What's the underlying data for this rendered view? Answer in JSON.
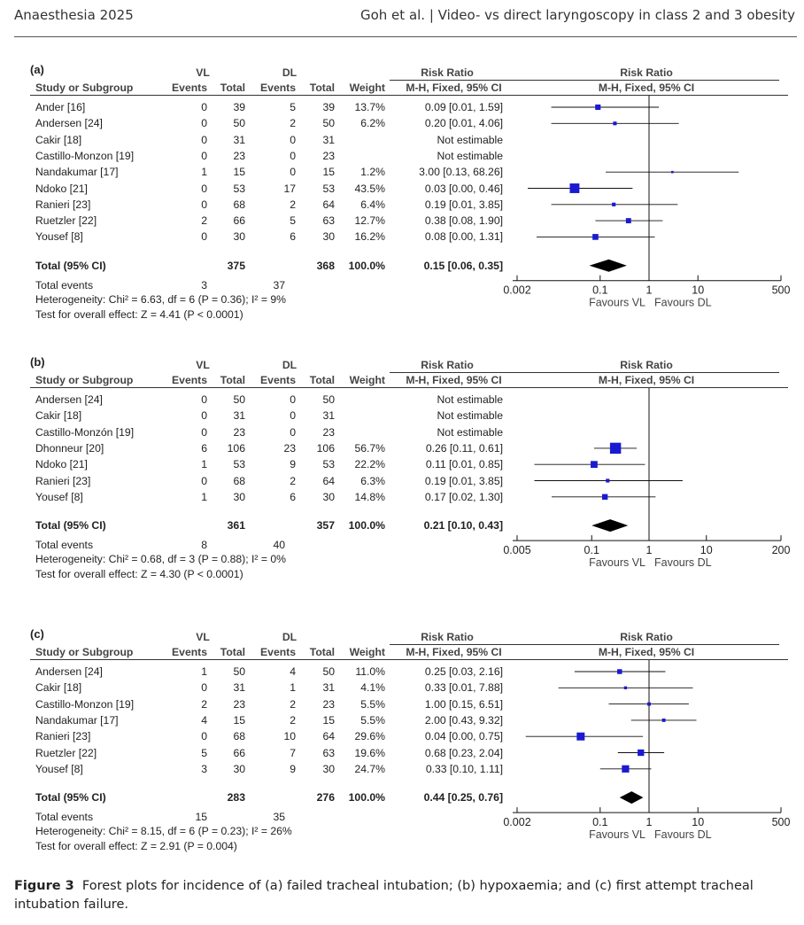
{
  "header": {
    "journal": "Anaesthesia 2025",
    "running_title": "Goh et al.  |  Video- vs direct laryngoscopy in class 2 and 3 obesity"
  },
  "caption": {
    "label": "Figure 3",
    "text": "Forest plots for incidence of (a) failed tracheal intubation; (b) hypoxaemia; and (c) first attempt tracheal intubation failure."
  },
  "column_headers": {
    "group1": "VL",
    "group2": "DL",
    "study": "Study or Subgroup",
    "events": "Events",
    "total": "Total",
    "weight": "Weight",
    "rr_title": "Risk Ratio",
    "rr_method": "M-H, Fixed, 95% CI",
    "plot_title": "Risk Ratio",
    "plot_method": "M-H, Fixed, 95% CI",
    "favours_left": "Favours VL",
    "favours_right": "Favours DL",
    "total_events_label": "Total events"
  },
  "chart_data": [
    {
      "label": "(a)",
      "type": "forest",
      "scale": "log",
      "xlim": [
        0.002,
        500
      ],
      "ticks": [
        "0.002",
        "0.1",
        "1",
        "10",
        "500"
      ],
      "rows": [
        {
          "study": "Ander [16]",
          "vl_events": "0",
          "vl_total": "39",
          "dl_events": "5",
          "dl_total": "39",
          "weight": "13.7%",
          "rr_text": "0.09 [0.01, 1.59]",
          "rr": 0.09,
          "lo": 0.01,
          "hi": 1.59,
          "w": 13.7
        },
        {
          "study": "Andersen [24]",
          "vl_events": "0",
          "vl_total": "50",
          "dl_events": "2",
          "dl_total": "50",
          "weight": "6.2%",
          "rr_text": "0.20 [0.01, 4.06]",
          "rr": 0.2,
          "lo": 0.01,
          "hi": 4.06,
          "w": 6.2
        },
        {
          "study": "Cakir [18]",
          "vl_events": "0",
          "vl_total": "31",
          "dl_events": "0",
          "dl_total": "31",
          "weight": "",
          "rr_text": "Not estimable",
          "rr": null,
          "lo": null,
          "hi": null,
          "w": 0
        },
        {
          "study": "Castillo-Monzon [19]",
          "vl_events": "0",
          "vl_total": "23",
          "dl_events": "0",
          "dl_total": "23",
          "weight": "",
          "rr_text": "Not estimable",
          "rr": null,
          "lo": null,
          "hi": null,
          "w": 0
        },
        {
          "study": "Nandakumar [17]",
          "vl_events": "1",
          "vl_total": "15",
          "dl_events": "0",
          "dl_total": "15",
          "weight": "1.2%",
          "rr_text": "3.00 [0.13, 68.26]",
          "rr": 3.0,
          "lo": 0.13,
          "hi": 68.26,
          "w": 1.2
        },
        {
          "study": "Ndoko [21]",
          "vl_events": "0",
          "vl_total": "53",
          "dl_events": "17",
          "dl_total": "53",
          "weight": "43.5%",
          "rr_text": "0.03 [0.00, 0.46]",
          "rr": 0.03,
          "lo": 0.0033,
          "hi": 0.46,
          "w": 43.5
        },
        {
          "study": "Ranieri [23]",
          "vl_events": "0",
          "vl_total": "68",
          "dl_events": "2",
          "dl_total": "64",
          "weight": "6.4%",
          "rr_text": "0.19 [0.01, 3.85]",
          "rr": 0.19,
          "lo": 0.01,
          "hi": 3.85,
          "w": 6.4
        },
        {
          "study": "Ruetzler [22]",
          "vl_events": "2",
          "vl_total": "66",
          "dl_events": "5",
          "dl_total": "63",
          "weight": "12.7%",
          "rr_text": "0.38 [0.08, 1.90]",
          "rr": 0.38,
          "lo": 0.08,
          "hi": 1.9,
          "w": 12.7
        },
        {
          "study": "Yousef [8]",
          "vl_events": "0",
          "vl_total": "30",
          "dl_events": "6",
          "dl_total": "30",
          "weight": "16.2%",
          "rr_text": "0.08 [0.00, 1.31]",
          "rr": 0.08,
          "lo": 0.005,
          "hi": 1.31,
          "w": 16.2
        }
      ],
      "total": {
        "label": "Total (95% CI)",
        "vl_total": "375",
        "dl_total": "368",
        "weight": "100.0%",
        "rr_text": "0.15 [0.06, 0.35]",
        "rr": 0.15,
        "lo": 0.06,
        "hi": 0.35
      },
      "total_events": {
        "vl": "3",
        "dl": "37"
      },
      "heterogeneity": "Heterogeneity: Chi² = 6.63, df = 6 (P = 0.36); I² = 9%",
      "overall_effect": "Test for overall effect: Z = 4.41 (P < 0.0001)"
    },
    {
      "label": "(b)",
      "type": "forest",
      "scale": "log",
      "xlim": [
        0.005,
        200
      ],
      "ticks": [
        "0.005",
        "0.1",
        "1",
        "10",
        "200"
      ],
      "rows": [
        {
          "study": "Andersen [24]",
          "vl_events": "0",
          "vl_total": "50",
          "dl_events": "0",
          "dl_total": "50",
          "weight": "",
          "rr_text": "Not estimable",
          "rr": null,
          "lo": null,
          "hi": null,
          "w": 0
        },
        {
          "study": "Cakir [18]",
          "vl_events": "0",
          "vl_total": "31",
          "dl_events": "0",
          "dl_total": "31",
          "weight": "",
          "rr_text": "Not estimable",
          "rr": null,
          "lo": null,
          "hi": null,
          "w": 0
        },
        {
          "study": "Castillo-Monzón [19]",
          "vl_events": "0",
          "vl_total": "23",
          "dl_events": "0",
          "dl_total": "23",
          "weight": "",
          "rr_text": "Not estimable",
          "rr": null,
          "lo": null,
          "hi": null,
          "w": 0
        },
        {
          "study": "Dhonneur [20]",
          "vl_events": "6",
          "vl_total": "106",
          "dl_events": "23",
          "dl_total": "106",
          "weight": "56.7%",
          "rr_text": "0.26 [0.11, 0.61]",
          "rr": 0.26,
          "lo": 0.11,
          "hi": 0.61,
          "w": 56.7
        },
        {
          "study": "Ndoko [21]",
          "vl_events": "1",
          "vl_total": "53",
          "dl_events": "9",
          "dl_total": "53",
          "weight": "22.2%",
          "rr_text": "0.11 [0.01, 0.85]",
          "rr": 0.11,
          "lo": 0.01,
          "hi": 0.85,
          "w": 22.2
        },
        {
          "study": "Ranieri [23]",
          "vl_events": "0",
          "vl_total": "68",
          "dl_events": "2",
          "dl_total": "64",
          "weight": "6.3%",
          "rr_text": "0.19 [0.01, 3.85]",
          "rr": 0.19,
          "lo": 0.01,
          "hi": 3.85,
          "w": 6.3
        },
        {
          "study": "Yousef [8]",
          "vl_events": "1",
          "vl_total": "30",
          "dl_events": "6",
          "dl_total": "30",
          "weight": "14.8%",
          "rr_text": "0.17 [0.02, 1.30]",
          "rr": 0.17,
          "lo": 0.02,
          "hi": 1.3,
          "w": 14.8
        }
      ],
      "total": {
        "label": "Total (95% CI)",
        "vl_total": "361",
        "dl_total": "357",
        "weight": "100.0%",
        "rr_text": "0.21 [0.10, 0.43]",
        "rr": 0.21,
        "lo": 0.1,
        "hi": 0.43
      },
      "total_events": {
        "vl": "8",
        "dl": "40"
      },
      "heterogeneity": "Heterogeneity: Chi² = 0.68, df = 3 (P = 0.88); I² = 0%",
      "overall_effect": "Test for overall effect: Z = 4.30 (P < 0.0001)"
    },
    {
      "label": "(c)",
      "type": "forest",
      "scale": "log",
      "xlim": [
        0.002,
        500
      ],
      "ticks": [
        "0.002",
        "0.1",
        "1",
        "10",
        "500"
      ],
      "rows": [
        {
          "study": "Andersen [24]",
          "vl_events": "1",
          "vl_total": "50",
          "dl_events": "4",
          "dl_total": "50",
          "weight": "11.0%",
          "rr_text": "0.25 [0.03, 2.16]",
          "rr": 0.25,
          "lo": 0.03,
          "hi": 2.16,
          "w": 11.0
        },
        {
          "study": "Cakir [18]",
          "vl_events": "0",
          "vl_total": "31",
          "dl_events": "1",
          "dl_total": "31",
          "weight": "4.1%",
          "rr_text": "0.33 [0.01, 7.88]",
          "rr": 0.33,
          "lo": 0.014,
          "hi": 7.88,
          "w": 4.1
        },
        {
          "study": "Castillo-Monzon [19]",
          "vl_events": "2",
          "vl_total": "23",
          "dl_events": "2",
          "dl_total": "23",
          "weight": "5.5%",
          "rr_text": "1.00 [0.15, 6.51]",
          "rr": 1.0,
          "lo": 0.15,
          "hi": 6.51,
          "w": 5.5
        },
        {
          "study": "Nandakumar [17]",
          "vl_events": "4",
          "vl_total": "15",
          "dl_events": "2",
          "dl_total": "15",
          "weight": "5.5%",
          "rr_text": "2.00 [0.43, 9.32]",
          "rr": 2.0,
          "lo": 0.43,
          "hi": 9.32,
          "w": 5.5
        },
        {
          "study": "Ranieri [23]",
          "vl_events": "0",
          "vl_total": "68",
          "dl_events": "10",
          "dl_total": "64",
          "weight": "29.6%",
          "rr_text": "0.04 [0.00, 0.75]",
          "rr": 0.04,
          "lo": 0.003,
          "hi": 0.75,
          "w": 29.6
        },
        {
          "study": "Ruetzler [22]",
          "vl_events": "5",
          "vl_total": "66",
          "dl_events": "7",
          "dl_total": "63",
          "weight": "19.6%",
          "rr_text": "0.68 [0.23, 2.04]",
          "rr": 0.68,
          "lo": 0.23,
          "hi": 2.04,
          "w": 19.6
        },
        {
          "study": "Yousef [8]",
          "vl_events": "3",
          "vl_total": "30",
          "dl_events": "9",
          "dl_total": "30",
          "weight": "24.7%",
          "rr_text": "0.33 [0.10, 1.11]",
          "rr": 0.33,
          "lo": 0.1,
          "hi": 1.11,
          "w": 24.7
        }
      ],
      "total": {
        "label": "Total (95% CI)",
        "vl_total": "283",
        "dl_total": "276",
        "weight": "100.0%",
        "rr_text": "0.44 [0.25, 0.76]",
        "rr": 0.44,
        "lo": 0.25,
        "hi": 0.76
      },
      "total_events": {
        "vl": "15",
        "dl": "35"
      },
      "heterogeneity": "Heterogeneity: Chi² = 8.15, df = 6 (P = 0.23); I² = 26%",
      "overall_effect": "Test for overall effect: Z = 2.91 (P = 0.004)"
    }
  ],
  "colors": {
    "marker": "#1a1ad2",
    "diamond": "#000000",
    "line": "#111111",
    "text": "#222222"
  }
}
